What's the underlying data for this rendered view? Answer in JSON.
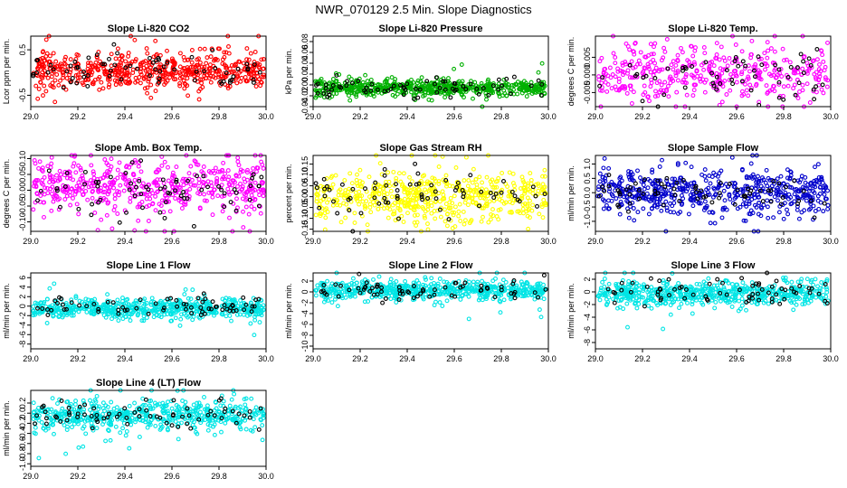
{
  "title": "NWR_070129  2.5 Min. Slope Diagnostics",
  "chart_data": [
    {
      "type": "scatter",
      "title": "Slope Li-820 CO2",
      "ylabel": "Lcor ppm per min.",
      "xlim": [
        29.0,
        30.0
      ],
      "ylim": [
        -0.75,
        0.8
      ],
      "xticks": [
        29.0,
        29.2,
        29.4,
        29.6,
        29.8,
        30.0
      ],
      "yticks": [
        -0.5,
        0.5
      ],
      "series": [
        {
          "color": "#ff0000",
          "n": 560,
          "center": 0.05,
          "spread": 0.22,
          "seed": 11
        },
        {
          "color": "#000000",
          "n": 70,
          "center": 0.05,
          "spread": 0.2,
          "seed": 12
        }
      ]
    },
    {
      "type": "scatter",
      "title": "Slope Li-820 Pressure",
      "ylabel": "kPa per min.",
      "xlim": [
        29.0,
        30.0
      ],
      "ylim": [
        -0.04,
        0.09
      ],
      "xticks": [
        29.0,
        29.2,
        29.4,
        29.6,
        29.8,
        30.0
      ],
      "yticks": [
        -0.04,
        -0.02,
        0.0,
        0.02,
        0.04,
        0.06,
        0.08
      ],
      "series": [
        {
          "color": "#00b000",
          "n": 600,
          "center": -0.005,
          "spread": 0.008,
          "seed": 21
        },
        {
          "color": "#000000",
          "n": 70,
          "center": -0.008,
          "spread": 0.008,
          "seed": 22
        }
      ]
    },
    {
      "type": "scatter",
      "title": "Slope Li-820 Temp.",
      "ylabel": "degrees C per min.",
      "xlim": [
        29.0,
        30.0
      ],
      "ylim": [
        -0.009,
        0.011
      ],
      "xticks": [
        29.0,
        29.2,
        29.4,
        29.6,
        29.8,
        30.0
      ],
      "yticks": [
        -0.005,
        0.0,
        0.005
      ],
      "series": [
        {
          "color": "#ff00ff",
          "n": 420,
          "center": 0.0005,
          "spread": 0.004,
          "seed": 31
        },
        {
          "color": "#000000",
          "n": 60,
          "center": 0.0,
          "spread": 0.004,
          "seed": 32
        }
      ]
    },
    {
      "type": "scatter",
      "title": "Slope Amb. Box Temp.",
      "ylabel": "degrees C per min.",
      "xlim": [
        29.0,
        30.0
      ],
      "ylim": [
        -0.13,
        0.11
      ],
      "xticks": [
        29.0,
        29.2,
        29.4,
        29.6,
        29.8,
        30.0
      ],
      "yticks": [
        -0.1,
        -0.05,
        0.0,
        0.05,
        0.1
      ],
      "series": [
        {
          "color": "#ff00ff",
          "n": 520,
          "center": 0.01,
          "spread": 0.045,
          "seed": 41
        },
        {
          "color": "#000000",
          "n": 70,
          "center": 0.0,
          "spread": 0.04,
          "seed": 42
        }
      ]
    },
    {
      "type": "scatter",
      "title": "Slope Gas Stream RH",
      "ylabel": "percent per min.",
      "xlim": [
        29.0,
        30.0
      ],
      "ylim": [
        -0.16,
        0.19
      ],
      "xticks": [
        29.0,
        29.2,
        29.4,
        29.6,
        29.8,
        30.0
      ],
      "yticks": [
        -0.15,
        -0.1,
        -0.05,
        0.0,
        0.05,
        0.1,
        0.15
      ],
      "series": [
        {
          "color": "#ffff00",
          "n": 560,
          "center": 0.0,
          "spread": 0.06,
          "seed": 51
        },
        {
          "color": "#000000",
          "n": 70,
          "center": 0.0,
          "spread": 0.055,
          "seed": 52
        }
      ]
    },
    {
      "type": "scatter",
      "title": "Slope Sample Flow",
      "ylabel": "ml/min per min.",
      "xlim": [
        29.0,
        30.0
      ],
      "ylim": [
        -1.35,
        1.3
      ],
      "xticks": [
        29.0,
        29.2,
        29.4,
        29.6,
        29.8,
        30.0
      ],
      "yticks": [
        -1.0,
        -0.5,
        0.0,
        0.5,
        1.0
      ],
      "series": [
        {
          "color": "#0000cc",
          "n": 560,
          "center": 0.0,
          "spread": 0.4,
          "seed": 61
        },
        {
          "color": "#000000",
          "n": 70,
          "center": 0.0,
          "spread": 0.35,
          "seed": 62
        }
      ]
    },
    {
      "type": "scatter",
      "title": "Slope Line 1 Flow",
      "ylabel": "ml/min per min.",
      "xlim": [
        29.0,
        30.0
      ],
      "ylim": [
        -9.0,
        7.0
      ],
      "xticks": [
        29.0,
        29.2,
        29.4,
        29.6,
        29.8,
        30.0
      ],
      "yticks": [
        -8,
        -6,
        -4,
        -2,
        0,
        2,
        4,
        6
      ],
      "series": [
        {
          "color": "#00e5e5",
          "n": 600,
          "center": -0.5,
          "spread": 1.0,
          "seed": 71
        },
        {
          "color": "#000000",
          "n": 70,
          "center": 0.0,
          "spread": 0.9,
          "seed": 72
        }
      ]
    },
    {
      "type": "scatter",
      "title": "Slope Line 2 Flow",
      "ylabel": "ml/min per min.",
      "xlim": [
        29.0,
        30.0
      ],
      "ylim": [
        -10.5,
        3.5
      ],
      "xticks": [
        29.0,
        29.2,
        29.4,
        29.6,
        29.8,
        30.0
      ],
      "yticks": [
        -10,
        -8,
        -6,
        -4,
        -2,
        0,
        2
      ],
      "series": [
        {
          "color": "#00e5e5",
          "n": 600,
          "center": 0.3,
          "spread": 0.9,
          "seed": 81
        },
        {
          "color": "#000000",
          "n": 70,
          "center": 0.3,
          "spread": 0.9,
          "seed": 82
        }
      ]
    },
    {
      "type": "scatter",
      "title": "Slope Line 3 Flow",
      "ylabel": "ml/min per min.",
      "xlim": [
        29.0,
        30.0
      ],
      "ylim": [
        -9.0,
        3.0
      ],
      "xticks": [
        29.0,
        29.2,
        29.4,
        29.6,
        29.8,
        30.0
      ],
      "yticks": [
        -8,
        -6,
        -4,
        -2,
        0,
        2
      ],
      "series": [
        {
          "color": "#00e5e5",
          "n": 600,
          "center": -0.2,
          "spread": 1.0,
          "seed": 91
        },
        {
          "color": "#000000",
          "n": 70,
          "center": 0.0,
          "spread": 1.0,
          "seed": 92
        }
      ]
    },
    {
      "type": "scatter",
      "title": "Slope Line 4 (LT) Flow",
      "ylabel": "ml/min per min.",
      "xlim": [
        29.0,
        30.0
      ],
      "ylim": [
        -1.05,
        0.45
      ],
      "xticks": [
        29.0,
        29.2,
        29.4,
        29.6,
        29.8,
        30.0
      ],
      "yticks": [
        -1.0,
        -0.8,
        -0.6,
        -0.4,
        -0.2,
        0.0,
        0.2
      ],
      "series": [
        {
          "color": "#00e5e5",
          "n": 560,
          "center": -0.05,
          "spread": 0.15,
          "seed": 101
        },
        {
          "color": "#000000",
          "n": 70,
          "center": -0.05,
          "spread": 0.13,
          "seed": 102
        }
      ]
    }
  ]
}
